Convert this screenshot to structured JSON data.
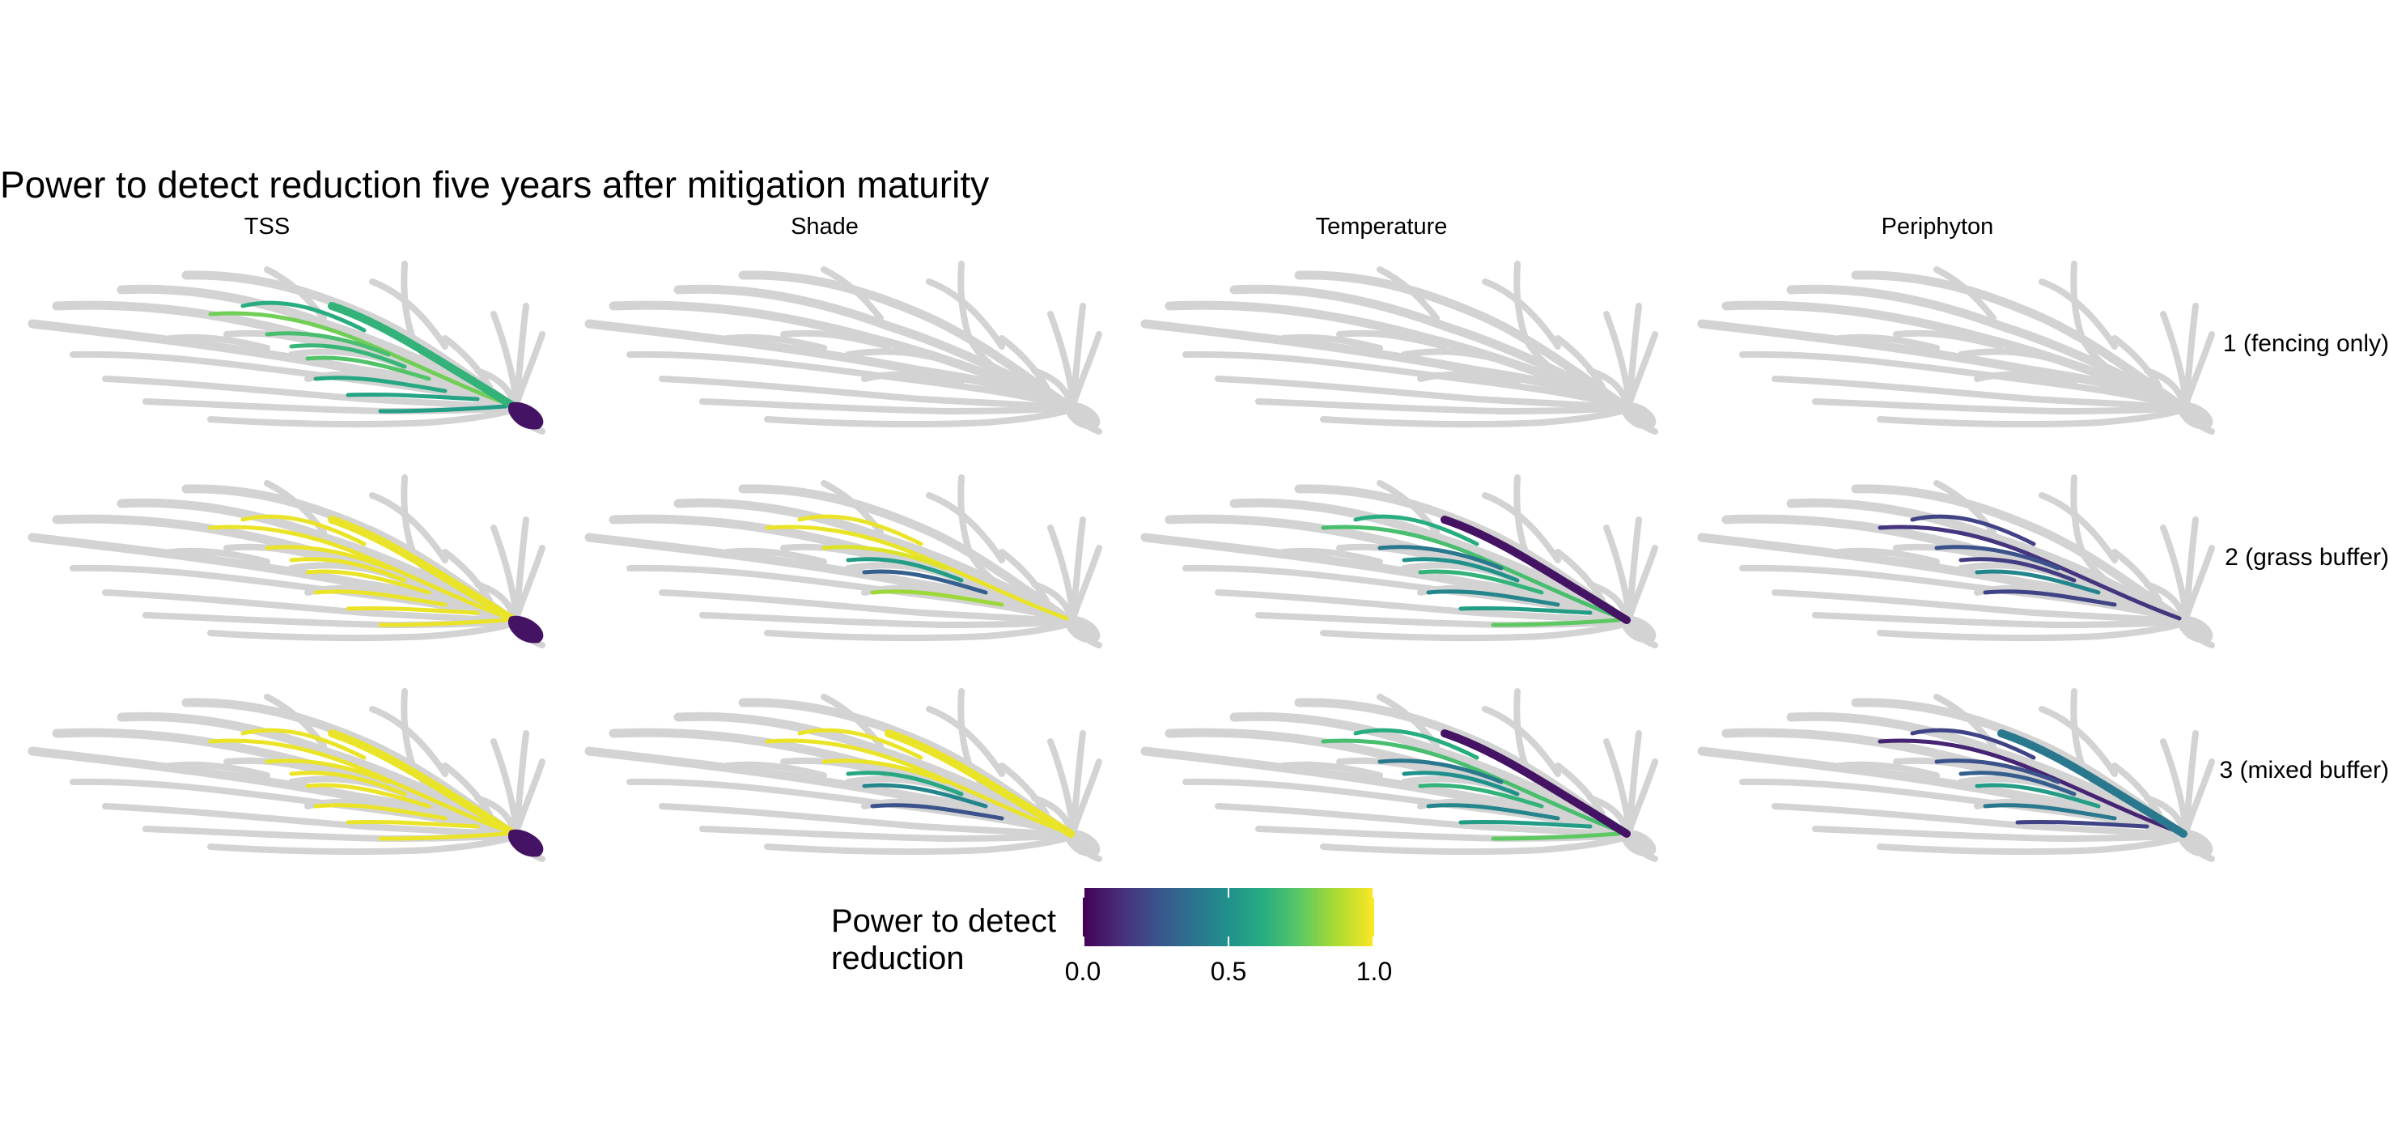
{
  "title": "Power to detect reduction five years after mitigation maturity",
  "columns": [
    "TSS",
    "Shade",
    "Temperature",
    "Periphyton"
  ],
  "rows": [
    "1 (fencing only)",
    "2 (grass buffer)",
    "3 (mixed buffer)"
  ],
  "legend": {
    "title_line1": "Power to detect",
    "title_line2": "reduction",
    "ticks": [
      "0.0",
      "0.5",
      "1.0"
    ],
    "palette": [
      "#440154",
      "#472d7b",
      "#3b528b",
      "#2c728e",
      "#21918c",
      "#28ae80",
      "#5ec962",
      "#addc30",
      "#fde725"
    ]
  },
  "network_color": "#d3d3d3",
  "panels": [
    {
      "column": "TSS",
      "row": "1 (fencing only)",
      "outlet": 0.05,
      "branches": [
        0.78,
        0.62,
        0.7,
        0.66,
        0.72,
        0.6,
        0.58,
        0.55
      ],
      "trunk": 0.65
    },
    {
      "column": "Shade",
      "row": "1 (fencing only)",
      "outlet": null,
      "branches": [],
      "trunk": null
    },
    {
      "column": "Temperature",
      "row": "1 (fencing only)",
      "outlet": null,
      "branches": [],
      "trunk": null
    },
    {
      "column": "Periphyton",
      "row": "1 (fencing only)",
      "outlet": null,
      "branches": [],
      "trunk": null
    },
    {
      "column": "TSS",
      "row": "2 (grass buffer)",
      "outlet": 0.05,
      "branches": [
        0.97,
        0.97,
        0.97,
        0.97,
        0.97,
        0.97,
        0.97,
        0.97
      ],
      "trunk": 0.97
    },
    {
      "column": "Shade",
      "row": "2 (grass buffer)",
      "outlet": null,
      "branches": [
        0.97,
        0.97,
        0.95,
        0.55,
        0.3,
        0.85
      ],
      "trunk": null
    },
    {
      "column": "Temperature",
      "row": "2 (grass buffer)",
      "outlet": null,
      "branches": [
        0.7,
        0.62,
        0.4,
        0.5,
        0.65,
        0.45,
        0.55,
        0.75
      ],
      "trunk": 0.05
    },
    {
      "column": "Periphyton",
      "row": "2 (grass buffer)",
      "outlet": null,
      "branches": [
        0.15,
        0.2,
        0.25,
        0.18,
        0.45,
        0.2
      ],
      "trunk": null
    },
    {
      "column": "TSS",
      "row": "3 (mixed buffer)",
      "outlet": 0.05,
      "branches": [
        0.97,
        0.97,
        0.97,
        0.97,
        0.97,
        0.97,
        0.97,
        0.97
      ],
      "trunk": 0.97
    },
    {
      "column": "Shade",
      "row": "3 (mixed buffer)",
      "outlet": null,
      "branches": [
        0.97,
        0.97,
        0.97,
        0.6,
        0.45,
        0.25
      ],
      "trunk": 0.97
    },
    {
      "column": "Temperature",
      "row": "3 (mixed buffer)",
      "outlet": null,
      "branches": [
        0.7,
        0.62,
        0.4,
        0.5,
        0.65,
        0.45,
        0.55,
        0.75
      ],
      "trunk": 0.05
    },
    {
      "column": "Periphyton",
      "row": "3 (mixed buffer)",
      "outlet": null,
      "branches": [
        0.1,
        0.2,
        0.25,
        0.3,
        0.55,
        0.4,
        0.2
      ],
      "trunk": 0.4
    }
  ]
}
